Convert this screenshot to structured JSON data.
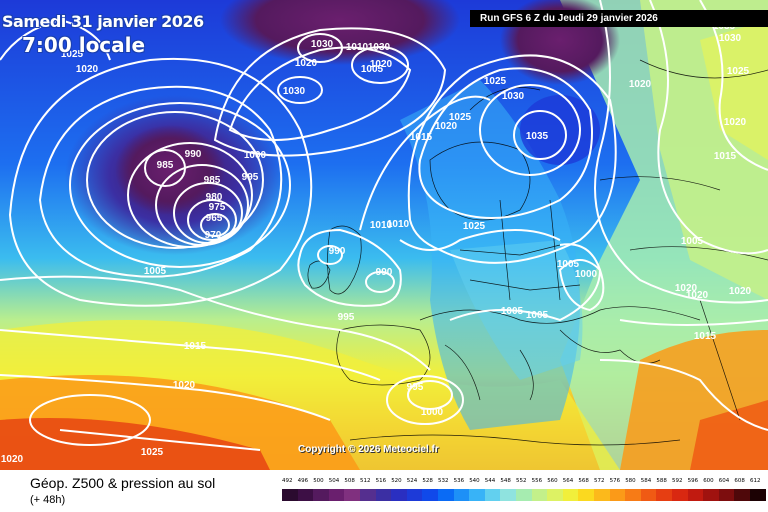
{
  "header": {
    "date": "Samedi 31 janvier 2026",
    "time": "7:00 locale",
    "run": "Run GFS 6 Z du Jeudi 29 janvier 2026"
  },
  "copyright": "Copyright © 2026 Meteociel.fr",
  "footer": {
    "title": "Géop. Z500 & pression au sol",
    "subtitle": "(+ 48h)"
  },
  "scale": {
    "values": [
      "492",
      "496",
      "500",
      "504",
      "508",
      "512",
      "516",
      "520",
      "524",
      "528",
      "532",
      "536",
      "540",
      "544",
      "548",
      "552",
      "556",
      "560",
      "564",
      "568",
      "572",
      "576",
      "580",
      "584",
      "588",
      "592",
      "596",
      "600",
      "604",
      "608",
      "612"
    ],
    "colors": [
      "#2b0b2f",
      "#3d0f45",
      "#541a5e",
      "#6a1f6e",
      "#80307f",
      "#552f8f",
      "#3b2fa3",
      "#2a2fc1",
      "#1d3ad8",
      "#1049ea",
      "#0a6bf5",
      "#1d90f7",
      "#38b3f7",
      "#62d0ef",
      "#8fe3df",
      "#a6ecb0",
      "#c3f08a",
      "#ddf264",
      "#f1ef3b",
      "#fbd91f",
      "#fcb91b",
      "#fb9a18",
      "#f77b16",
      "#f05a14",
      "#e63e12",
      "#d92811",
      "#c11a10",
      "#a0120f",
      "#7d0d0e",
      "#4f080a",
      "#1c0204"
    ]
  },
  "isobars": [
    {
      "label": "1030"
    },
    {
      "label": "1030"
    },
    {
      "label": "1010"
    },
    {
      "label": "1020"
    },
    {
      "label": "1005"
    },
    {
      "label": "1025"
    },
    {
      "label": "1020"
    },
    {
      "label": "1030"
    },
    {
      "label": "1020"
    },
    {
      "label": "1030"
    },
    {
      "label": "1025"
    },
    {
      "label": "1030"
    },
    {
      "label": "1035"
    },
    {
      "label": "1035"
    },
    {
      "label": "1015"
    },
    {
      "label": "1025"
    },
    {
      "label": "1020"
    },
    {
      "label": "985"
    },
    {
      "label": "990"
    },
    {
      "label": "1000"
    },
    {
      "label": "985"
    },
    {
      "label": "980"
    },
    {
      "label": "975"
    },
    {
      "label": "965"
    },
    {
      "label": "970"
    },
    {
      "label": "995"
    },
    {
      "label": "1010"
    },
    {
      "label": "1010"
    },
    {
      "label": "990"
    },
    {
      "label": "990"
    },
    {
      "label": "1025"
    },
    {
      "label": "1005"
    },
    {
      "label": "1005"
    },
    {
      "label": "1000"
    },
    {
      "label": "995"
    },
    {
      "label": "1005"
    },
    {
      "label": "1005"
    },
    {
      "label": "1015"
    },
    {
      "label": "1020"
    },
    {
      "label": "995"
    },
    {
      "label": "1000"
    },
    {
      "label": "1025"
    },
    {
      "label": "1020"
    },
    {
      "label": "1020"
    },
    {
      "label": "1025"
    },
    {
      "label": "1020"
    },
    {
      "label": "1015"
    },
    {
      "label": "1005"
    },
    {
      "label": "1020"
    },
    {
      "label": "1020"
    },
    {
      "label": "1020"
    },
    {
      "label": "1015"
    }
  ]
}
